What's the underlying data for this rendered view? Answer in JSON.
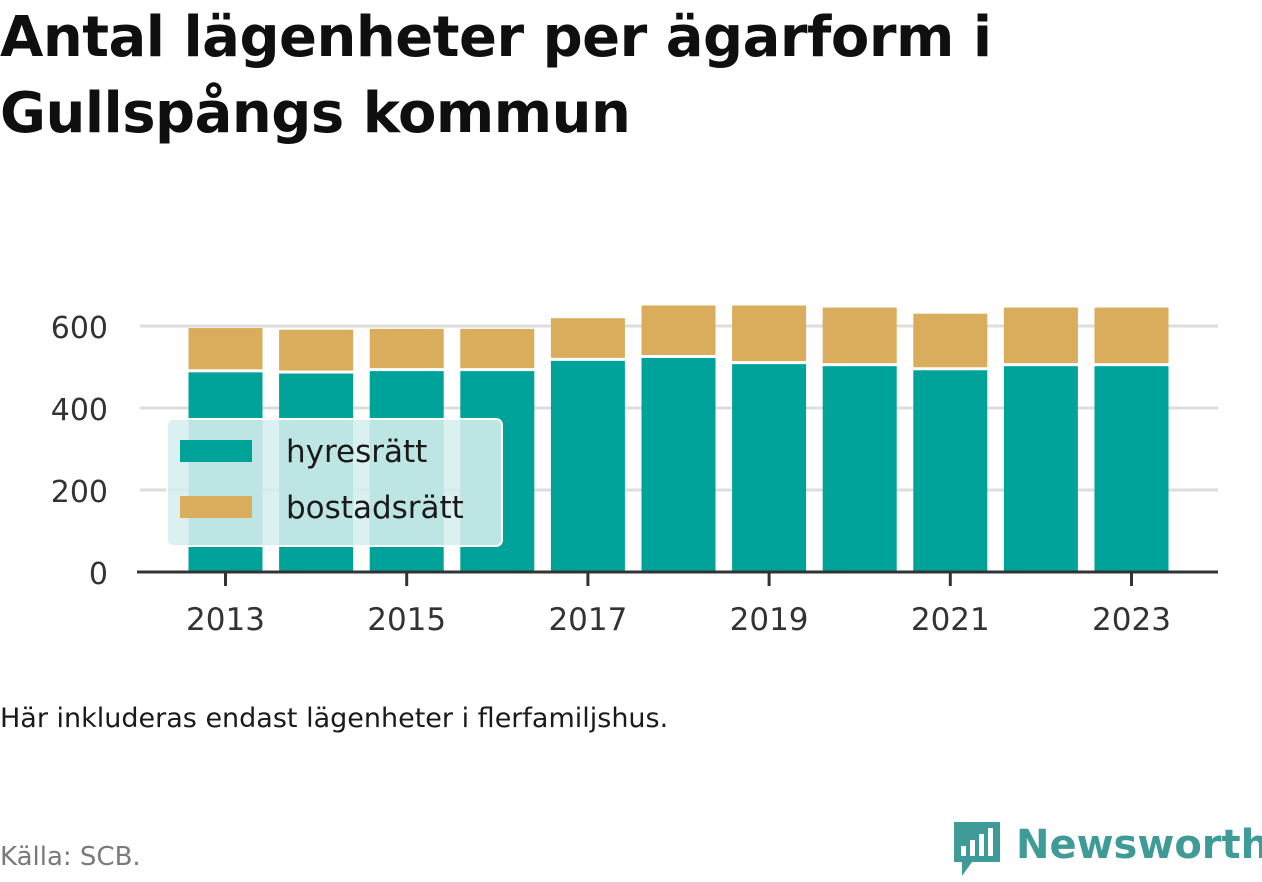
{
  "title": "Antal lägenheter per ägarform i Gullspångs kommun",
  "note": "Här inkluderas endast lägenheter i flerfamiljshus.",
  "source": "Källa: SCB.",
  "brand": "Newsworthy",
  "colors": {
    "hyresratt": "#00a39a",
    "bostadsratt": "#d9ad5c",
    "brand": "#3f9b97",
    "grid": "#dddddd",
    "axis": "#333333"
  },
  "chart_data": {
    "type": "bar",
    "stacked": true,
    "categories": [
      2013,
      2014,
      2015,
      2016,
      2017,
      2018,
      2019,
      2020,
      2021,
      2022,
      2023
    ],
    "x_tick_labels": [
      "2013",
      "2015",
      "2017",
      "2019",
      "2021",
      "2023"
    ],
    "y_ticks": [
      0,
      200,
      400,
      600
    ],
    "ylim": [
      0,
      650
    ],
    "grid": "horizontal",
    "legend_position": "left-inside",
    "series": [
      {
        "name": "hyresrätt",
        "values": [
          487,
          484,
          490,
          490,
          515,
          522,
          507,
          502,
          492,
          502,
          502
        ]
      },
      {
        "name": "bostadsrätt",
        "values": [
          108,
          107,
          103,
          103,
          104,
          128,
          143,
          143,
          138,
          143,
          143
        ]
      }
    ],
    "title": "Antal lägenheter per ägarform i Gullspångs kommun",
    "xlabel": "",
    "ylabel": ""
  }
}
